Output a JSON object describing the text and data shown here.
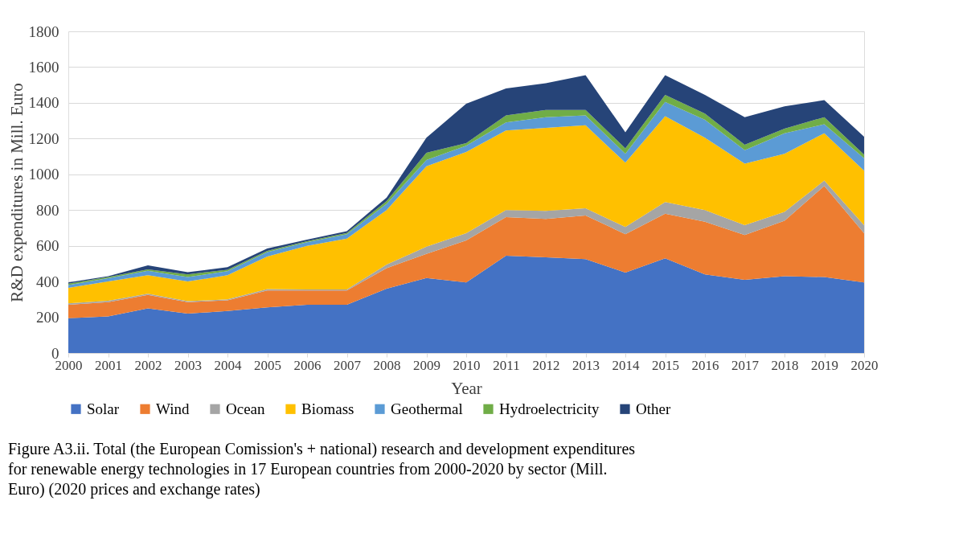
{
  "chart_data": {
    "type": "area",
    "stacked": true,
    "xlabel": "Year",
    "ylabel": "R&D expenditures in Mill. Euro",
    "x": [
      2000,
      2001,
      2002,
      2003,
      2004,
      2005,
      2006,
      2007,
      2008,
      2009,
      2010,
      2011,
      2012,
      2013,
      2014,
      2015,
      2016,
      2017,
      2018,
      2019,
      2020
    ],
    "xlim": [
      2000,
      2020
    ],
    "xticks": [
      2000,
      2001,
      2002,
      2003,
      2004,
      2005,
      2006,
      2007,
      2008,
      2009,
      2010,
      2011,
      2012,
      2013,
      2014,
      2015,
      2016,
      2017,
      2018,
      2019,
      2020
    ],
    "ylim": [
      0,
      1800
    ],
    "yticks": [
      0,
      200,
      400,
      600,
      800,
      1000,
      1200,
      1400,
      1600,
      1800
    ],
    "grid": "y",
    "legend": "bottom",
    "series": [
      {
        "name": "Solar",
        "color": "#4472c4",
        "values": [
          195,
          205,
          250,
          220,
          235,
          255,
          270,
          270,
          360,
          420,
          395,
          545,
          535,
          525,
          450,
          530,
          440,
          410,
          430,
          425,
          395
        ]
      },
      {
        "name": "Wind",
        "color": "#ed7d31",
        "values": [
          75,
          80,
          75,
          65,
          60,
          95,
          80,
          80,
          115,
          135,
          235,
          215,
          215,
          245,
          215,
          250,
          295,
          250,
          310,
          510,
          275
        ]
      },
      {
        "name": "Ocean",
        "color": "#a5a5a5",
        "values": [
          8,
          7,
          7,
          5,
          5,
          8,
          5,
          5,
          20,
          40,
          40,
          40,
          45,
          40,
          40,
          65,
          65,
          55,
          50,
          30,
          45
        ]
      },
      {
        "name": "Biomass",
        "color": "#ffc000",
        "values": [
          87,
          108,
          103,
          110,
          135,
          182,
          245,
          285,
          305,
          450,
          455,
          445,
          465,
          465,
          360,
          480,
          405,
          345,
          325,
          265,
          305
        ]
      },
      {
        "name": "Geothermal",
        "color": "#5b9bd5",
        "values": [
          15,
          18,
          25,
          25,
          23,
          25,
          20,
          25,
          35,
          35,
          35,
          45,
          60,
          55,
          50,
          80,
          100,
          75,
          115,
          50,
          70
        ]
      },
      {
        "name": "Hydroelectricity",
        "color": "#70ad47",
        "values": [
          8,
          7,
          8,
          15,
          8,
          7,
          5,
          7,
          15,
          40,
          15,
          40,
          40,
          30,
          30,
          40,
          35,
          30,
          25,
          40,
          20
        ]
      },
      {
        "name": "Other",
        "color": "#264478",
        "values": [
          7,
          5,
          22,
          12,
          14,
          13,
          10,
          10,
          20,
          85,
          220,
          150,
          150,
          195,
          90,
          110,
          105,
          155,
          125,
          95,
          100
        ]
      }
    ],
    "annotations": [
      "Figure A3.ii. Total (the European Comission's + national) research and development expenditures for renewable energy technologies in 17 European countries from 2000-2020 by sector (Mill. Euro) (2020 prices and exchange rates)"
    ]
  }
}
